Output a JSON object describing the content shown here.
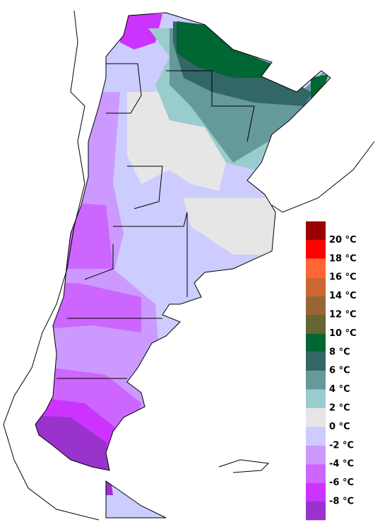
{
  "legend": {
    "labels": [
      "20 °C",
      "18 °C",
      "16 °C",
      "14 °C",
      "12 °C",
      "10 °C",
      "8 °C",
      "6 °C",
      "4 °C",
      "2 °C",
      "0 °C",
      "-2 °C",
      "-4 °C",
      "-6 °C",
      "-8 °C"
    ],
    "colors": [
      "#990000",
      "#ff0000",
      "#ff6633",
      "#cc6633",
      "#996633",
      "#666633",
      "#006633",
      "#336666",
      "#669999",
      "#99cccc",
      "#e6e6e6",
      "#ccccff",
      "#cc99ff",
      "#cc66ff",
      "#cc33ff",
      "#9933cc"
    ]
  }
}
